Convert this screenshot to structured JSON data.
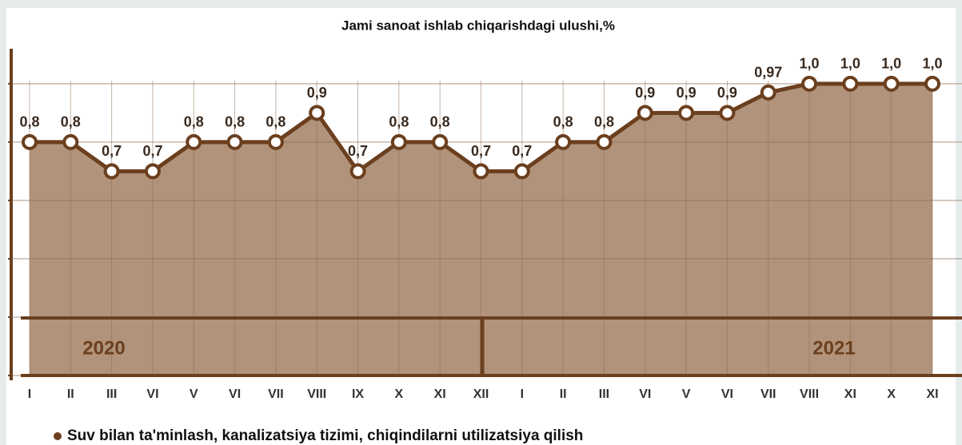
{
  "chart_data": {
    "type": "line",
    "title": "Jami sanoat ishlab chiqarishdagi ulushi,%",
    "categories": [
      "I",
      "II",
      "III",
      "VI",
      "V",
      "VI",
      "VII",
      "VIII",
      "IX",
      "X",
      "XI",
      "XII",
      "I",
      "II",
      "III",
      "VI",
      "V",
      "VI",
      "VII",
      "VIII",
      "XI",
      "X",
      "XI"
    ],
    "series": [
      {
        "name": "Suv bilan ta'minlash, kanalizatsiya tizimi, chiqindilarni utilizatsiya qilish",
        "color": "#6b3f1e",
        "values": [
          0.8,
          0.8,
          0.7,
          0.7,
          0.8,
          0.8,
          0.8,
          0.9,
          0.7,
          0.8,
          0.8,
          0.7,
          0.7,
          0.8,
          0.8,
          0.9,
          0.9,
          0.9,
          0.97,
          1.0,
          1.0,
          1.0,
          1.0
        ],
        "value_labels": [
          "0,8",
          "0,8",
          "0,7",
          "0,7",
          "0,8",
          "0,8",
          "0,8",
          "0,9",
          "0,7",
          "0,8",
          "0,8",
          "0,7",
          "0,7",
          "0,8",
          "0,8",
          "0,9",
          "0,9",
          "0,9",
          "0,97",
          "1,0",
          "1,0",
          "1,0",
          "1,0"
        ]
      }
    ],
    "annotations": [
      "2020",
      "2021"
    ],
    "area_color": "#b0937a",
    "ylim": [
      0,
      1.12
    ],
    "yticks": [
      0,
      0.2,
      0.4,
      0.6,
      0.8,
      1.0
    ],
    "grid": true
  }
}
